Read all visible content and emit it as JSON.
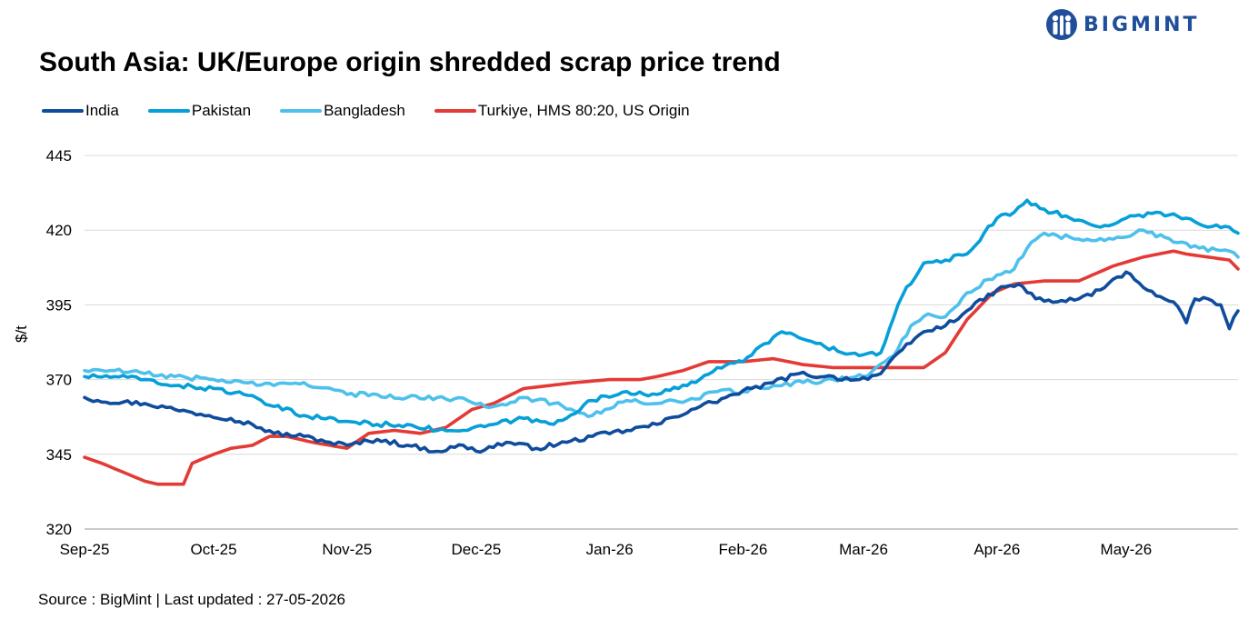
{
  "logo": {
    "name": "BIGMINT"
  },
  "title": "South Asia: UK/Europe origin shredded scrap price trend",
  "source": "Source : BigMint | Last updated : 27-05-2026",
  "chart_data": {
    "type": "line",
    "title": "South Asia: UK/Europe origin shredded scrap price trend",
    "ylabel": "$/t",
    "xlabel": "",
    "ylim": [
      320,
      445
    ],
    "yticks": [
      320,
      345,
      370,
      395,
      420,
      445
    ],
    "grid": true,
    "legend_position": "top-left",
    "x_tick_labels": [
      "Sep-25",
      "Oct-25",
      "Nov-25",
      "Dec-25",
      "Jan-26",
      "Feb-26",
      "Mar-26",
      "Apr-26",
      "May-26"
    ],
    "x_start": "2025-09-01",
    "x_end": "2026-05-27",
    "series": [
      {
        "name": "India",
        "color": "#0f4c9c",
        "x": [
          "2025-09-01",
          "2025-09-04",
          "2025-09-15",
          "2025-09-22",
          "2025-09-26",
          "2025-10-05",
          "2025-10-10",
          "2025-10-15",
          "2025-10-22",
          "2025-10-28",
          "2025-11-01",
          "2025-11-08",
          "2025-11-15",
          "2025-11-22",
          "2025-11-28",
          "2025-12-01",
          "2025-12-08",
          "2025-12-15",
          "2025-12-22",
          "2025-12-28",
          "2026-01-05",
          "2026-01-12",
          "2026-01-20",
          "2026-01-28",
          "2026-02-03",
          "2026-02-08",
          "2026-02-14",
          "2026-02-20",
          "2026-02-28",
          "2026-03-05",
          "2026-03-10",
          "2026-03-15",
          "2026-03-20",
          "2026-03-25",
          "2026-04-01",
          "2026-04-06",
          "2026-04-10",
          "2026-04-15",
          "2026-04-20",
          "2026-04-25",
          "2026-05-01",
          "2026-05-08",
          "2026-05-12",
          "2026-05-15",
          "2026-05-17",
          "2026-05-20",
          "2026-05-23",
          "2026-05-25",
          "2026-05-27"
        ],
        "values": [
          364,
          363,
          362,
          360,
          359,
          357,
          355,
          352,
          351,
          349,
          348,
          350,
          348,
          346,
          348,
          346,
          349,
          347,
          349,
          351,
          353,
          355,
          360,
          364,
          367,
          369,
          372,
          371,
          370,
          372,
          380,
          386,
          388,
          393,
          400,
          402,
          397,
          396,
          397,
          400,
          406,
          398,
          396,
          389,
          397,
          397,
          395,
          387,
          393
        ]
      },
      {
        "name": "Pakistan",
        "color": "#069fd8",
        "x": [
          "2025-09-01",
          "2025-09-08",
          "2025-09-15",
          "2025-09-22",
          "2025-10-01",
          "2025-10-08",
          "2025-10-15",
          "2025-10-22",
          "2025-11-01",
          "2025-11-08",
          "2025-11-15",
          "2025-11-22",
          "2025-11-29",
          "2025-12-05",
          "2025-12-12",
          "2025-12-19",
          "2025-12-28",
          "2026-01-05",
          "2026-01-12",
          "2026-01-19",
          "2026-01-26",
          "2026-02-01",
          "2026-02-06",
          "2026-02-10",
          "2026-02-14",
          "2026-02-20",
          "2026-02-28",
          "2026-03-05",
          "2026-03-10",
          "2026-03-15",
          "2026-03-20",
          "2026-03-25",
          "2026-04-01",
          "2026-04-05",
          "2026-04-08",
          "2026-04-12",
          "2026-04-18",
          "2026-04-25",
          "2026-05-01",
          "2026-05-08",
          "2026-05-15",
          "2026-05-20",
          "2026-05-25",
          "2026-05-27"
        ],
        "values": [
          371,
          371,
          370,
          368,
          367,
          365,
          361,
          358,
          356,
          355,
          355,
          353,
          353,
          355,
          357,
          355,
          363,
          366,
          365,
          368,
          374,
          376,
          382,
          386,
          384,
          381,
          378,
          379,
          398,
          409,
          410,
          412,
          424,
          426,
          430,
          427,
          424,
          421,
          424,
          426,
          424,
          421,
          421,
          419
        ]
      },
      {
        "name": "Bangladesh",
        "color": "#4ec0ec",
        "x": [
          "2025-09-01",
          "2025-09-08",
          "2025-09-15",
          "2025-09-22",
          "2025-10-01",
          "2025-10-08",
          "2025-10-15",
          "2025-10-22",
          "2025-11-01",
          "2025-11-08",
          "2025-11-15",
          "2025-11-22",
          "2025-11-29",
          "2025-12-05",
          "2025-12-12",
          "2025-12-19",
          "2025-12-28",
          "2026-01-05",
          "2026-01-12",
          "2026-01-19",
          "2026-01-26",
          "2026-02-01",
          "2026-02-08",
          "2026-02-15",
          "2026-02-22",
          "2026-03-01",
          "2026-03-08",
          "2026-03-12",
          "2026-03-16",
          "2026-03-20",
          "2026-03-25",
          "2026-04-01",
          "2026-04-05",
          "2026-04-08",
          "2026-04-12",
          "2026-04-20",
          "2026-04-28",
          "2026-05-05",
          "2026-05-12",
          "2026-05-18",
          "2026-05-25",
          "2026-05-27"
        ],
        "values": [
          373,
          373,
          372,
          371,
          370,
          369,
          368,
          369,
          365,
          365,
          364,
          364,
          363,
          361,
          364,
          362,
          358,
          363,
          362,
          363,
          366,
          366,
          368,
          369,
          370,
          371,
          378,
          388,
          392,
          391,
          399,
          405,
          407,
          414,
          419,
          417,
          417,
          420,
          416,
          414,
          413,
          411
        ]
      },
      {
        "name": "Turkiye, HMS 80:20, US Origin",
        "color": "#e33a36",
        "x": [
          "2025-09-01",
          "2025-09-05",
          "2025-09-10",
          "2025-09-15",
          "2025-09-18",
          "2025-09-24",
          "2025-09-26",
          "2025-10-01",
          "2025-10-05",
          "2025-10-10",
          "2025-10-14",
          "2025-10-18",
          "2025-10-24",
          "2025-11-01",
          "2025-11-06",
          "2025-11-12",
          "2025-11-18",
          "2025-11-24",
          "2025-11-30",
          "2025-12-05",
          "2025-12-12",
          "2025-12-18",
          "2025-12-24",
          "2026-01-01",
          "2026-01-08",
          "2026-01-12",
          "2026-01-18",
          "2026-01-24",
          "2026-02-01",
          "2026-02-08",
          "2026-02-15",
          "2026-02-22",
          "2026-03-01",
          "2026-03-08",
          "2026-03-15",
          "2026-03-20",
          "2026-03-25",
          "2026-03-31",
          "2026-04-05",
          "2026-04-12",
          "2026-04-20",
          "2026-04-28",
          "2026-05-05",
          "2026-05-12",
          "2026-05-15",
          "2026-05-20",
          "2026-05-25",
          "2026-05-27"
        ],
        "values": [
          344,
          342,
          339,
          336,
          335,
          335,
          342,
          345,
          347,
          348,
          351,
          351,
          349,
          347,
          352,
          353,
          352,
          354,
          360,
          362,
          367,
          368,
          369,
          370,
          370,
          371,
          373,
          376,
          376,
          377,
          375,
          374,
          374,
          374,
          374,
          379,
          390,
          399,
          402,
          403,
          403,
          408,
          411,
          413,
          412,
          411,
          410,
          407
        ]
      }
    ]
  }
}
